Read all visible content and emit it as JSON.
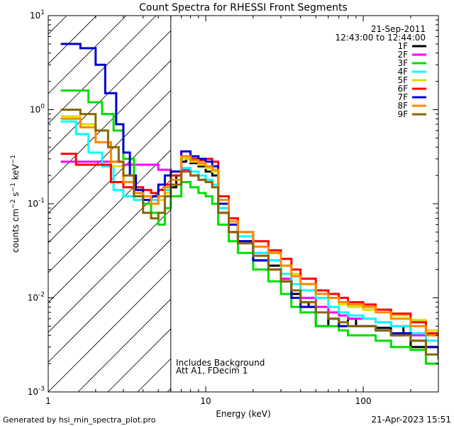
{
  "chart_data": {
    "type": "line",
    "title": "Count Spectra for RHESSI Front Segments",
    "xlabel": "Energy (keV)",
    "ylabel": "counts cm⁻² s⁻¹ keV⁻¹",
    "xscale": "log",
    "yscale": "log",
    "xlim": [
      1,
      300
    ],
    "ylim": [
      0.001,
      10
    ],
    "x_tick_labels": [
      {
        "value": 1,
        "label": "1"
      },
      {
        "value": 10,
        "label": "10"
      },
      {
        "value": 100,
        "label": "100"
      }
    ],
    "y_tick_labels": [
      {
        "value": 0.001,
        "base": "10",
        "exp": "-3"
      },
      {
        "value": 0.01,
        "base": "10",
        "exp": "-2"
      },
      {
        "value": 0.1,
        "base": "10",
        "exp": "-1"
      },
      {
        "value": 1,
        "base": "10",
        "exp": "0"
      },
      {
        "value": 10,
        "base": "10",
        "exp": "1"
      }
    ],
    "date": "21-Sep-2011",
    "time_range": "12:43:00 to 12:44:00",
    "shaded_region": {
      "x_min": 1,
      "x_max": 6,
      "pattern": "diagonal-hatch"
    },
    "annotations": [
      "Includes Background",
      "Att A1, FDecim 1"
    ],
    "series": [
      {
        "name": "1F",
        "color": "#000000",
        "points": [
          [
            6,
            0.15
          ],
          [
            6.5,
            0.2
          ],
          [
            7,
            0.28
          ],
          [
            7.5,
            0.3
          ],
          [
            8,
            0.27
          ],
          [
            9,
            0.25
          ],
          [
            10,
            0.22
          ],
          [
            11,
            0.2
          ],
          [
            12,
            0.09
          ],
          [
            14,
            0.05
          ],
          [
            16,
            0.04
          ],
          [
            20,
            0.025
          ],
          [
            25,
            0.022
          ],
          [
            30,
            0.015
          ],
          [
            35,
            0.011
          ],
          [
            40,
            0.009
          ],
          [
            45,
            0.008
          ],
          [
            50,
            0.005
          ],
          [
            60,
            0.006
          ],
          [
            70,
            0.005
          ],
          [
            80,
            0.006
          ],
          [
            90,
            0.005
          ],
          [
            100,
            0.005
          ],
          [
            120,
            0.0048
          ],
          [
            150,
            0.004
          ],
          [
            180,
            0.005
          ],
          [
            200,
            0.003
          ],
          [
            250,
            0.003
          ],
          [
            300,
            0.0027
          ]
        ]
      },
      {
        "name": "2F",
        "color": "#ff00ff",
        "points": [
          [
            1.2,
            0.28
          ],
          [
            2,
            0.28
          ],
          [
            3,
            0.26
          ],
          [
            4,
            0.26
          ],
          [
            5,
            0.23
          ],
          [
            6,
            0.22
          ],
          [
            7,
            0.23
          ],
          [
            8,
            0.2
          ],
          [
            9,
            0.18
          ],
          [
            10,
            0.17
          ],
          [
            11,
            0.16
          ],
          [
            12,
            0.08
          ],
          [
            14,
            0.05
          ],
          [
            16,
            0.04
          ],
          [
            20,
            0.03
          ],
          [
            25,
            0.025
          ],
          [
            30,
            0.016
          ],
          [
            35,
            0.012
          ],
          [
            40,
            0.01
          ],
          [
            50,
            0.008
          ],
          [
            60,
            0.007
          ],
          [
            70,
            0.0065
          ],
          [
            80,
            0.006
          ],
          [
            100,
            0.006
          ],
          [
            120,
            0.0055
          ],
          [
            150,
            0.005
          ],
          [
            200,
            0.004
          ],
          [
            250,
            0.0035
          ],
          [
            300,
            0.003
          ]
        ]
      },
      {
        "name": "3F",
        "color": "#00dd00",
        "points": [
          [
            1.2,
            1.6
          ],
          [
            1.6,
            1.6
          ],
          [
            1.8,
            1.2
          ],
          [
            2.2,
            0.9
          ],
          [
            2.6,
            0.6
          ],
          [
            3,
            0.3
          ],
          [
            3.5,
            0.14
          ],
          [
            4,
            0.1
          ],
          [
            4.5,
            0.08
          ],
          [
            5,
            0.06
          ],
          [
            5.5,
            0.09
          ],
          [
            6,
            0.12
          ],
          [
            7,
            0.17
          ],
          [
            8,
            0.15
          ],
          [
            9,
            0.13
          ],
          [
            10,
            0.12
          ],
          [
            11,
            0.1
          ],
          [
            12,
            0.06
          ],
          [
            14,
            0.04
          ],
          [
            16,
            0.03
          ],
          [
            20,
            0.02
          ],
          [
            25,
            0.015
          ],
          [
            30,
            0.011
          ],
          [
            35,
            0.008
          ],
          [
            40,
            0.007
          ],
          [
            50,
            0.005
          ],
          [
            60,
            0.005
          ],
          [
            70,
            0.0045
          ],
          [
            80,
            0.004
          ],
          [
            100,
            0.004
          ],
          [
            120,
            0.0035
          ],
          [
            150,
            0.003
          ],
          [
            200,
            0.0028
          ],
          [
            250,
            0.002
          ],
          [
            300,
            0.002
          ]
        ]
      },
      {
        "name": "4F",
        "color": "#00ffff",
        "points": [
          [
            1.2,
            0.75
          ],
          [
            1.5,
            0.55
          ],
          [
            1.8,
            0.35
          ],
          [
            2.2,
            0.25
          ],
          [
            2.6,
            0.14
          ],
          [
            3,
            0.12
          ],
          [
            3.5,
            0.11
          ],
          [
            4,
            0.11
          ],
          [
            4.5,
            0.11
          ],
          [
            5,
            0.12
          ],
          [
            5.5,
            0.14
          ],
          [
            6,
            0.16
          ],
          [
            7,
            0.24
          ],
          [
            8,
            0.22
          ],
          [
            9,
            0.2
          ],
          [
            10,
            0.18
          ],
          [
            11,
            0.16
          ],
          [
            12,
            0.09
          ],
          [
            14,
            0.06
          ],
          [
            16,
            0.045
          ],
          [
            20,
            0.03
          ],
          [
            25,
            0.025
          ],
          [
            30,
            0.018
          ],
          [
            35,
            0.014
          ],
          [
            40,
            0.012
          ],
          [
            50,
            0.01
          ],
          [
            60,
            0.008
          ],
          [
            70,
            0.007
          ],
          [
            80,
            0.0065
          ],
          [
            100,
            0.006
          ],
          [
            120,
            0.0055
          ],
          [
            150,
            0.005
          ],
          [
            200,
            0.0042
          ],
          [
            250,
            0.0035
          ],
          [
            300,
            0.003
          ]
        ]
      },
      {
        "name": "5F",
        "color": "#dddd00",
        "points": [
          [
            1.2,
            0.85
          ],
          [
            1.6,
            0.7
          ],
          [
            2,
            0.45
          ],
          [
            2.5,
            0.25
          ],
          [
            3,
            0.15
          ],
          [
            3.5,
            0.13
          ],
          [
            4,
            0.12
          ],
          [
            4.5,
            0.1
          ],
          [
            5,
            0.11
          ],
          [
            5.5,
            0.13
          ],
          [
            6,
            0.16
          ],
          [
            7,
            0.3
          ],
          [
            8,
            0.28
          ],
          [
            9,
            0.26
          ],
          [
            10,
            0.24
          ],
          [
            11,
            0.22
          ],
          [
            12,
            0.1
          ],
          [
            14,
            0.06
          ],
          [
            16,
            0.05
          ],
          [
            20,
            0.035
          ],
          [
            25,
            0.03
          ],
          [
            30,
            0.022
          ],
          [
            35,
            0.018
          ],
          [
            40,
            0.014
          ],
          [
            50,
            0.011
          ],
          [
            60,
            0.01
          ],
          [
            70,
            0.0085
          ],
          [
            80,
            0.008
          ],
          [
            100,
            0.0075
          ],
          [
            120,
            0.007
          ],
          [
            150,
            0.0065
          ],
          [
            200,
            0.0058
          ],
          [
            250,
            0.0045
          ],
          [
            300,
            0.0035
          ]
        ]
      },
      {
        "name": "6F",
        "color": "#ff0000",
        "points": [
          [
            1.2,
            0.34
          ],
          [
            1.5,
            0.26
          ],
          [
            2,
            0.26
          ],
          [
            2.5,
            0.17
          ],
          [
            3,
            0.15
          ],
          [
            3.5,
            0.15
          ],
          [
            4,
            0.14
          ],
          [
            4.5,
            0.13
          ],
          [
            5,
            0.14
          ],
          [
            5.5,
            0.16
          ],
          [
            6,
            0.2
          ],
          [
            7,
            0.32
          ],
          [
            8,
            0.3
          ],
          [
            9,
            0.29
          ],
          [
            10,
            0.3
          ],
          [
            11,
            0.28
          ],
          [
            12,
            0.12
          ],
          [
            14,
            0.07
          ],
          [
            16,
            0.05
          ],
          [
            20,
            0.04
          ],
          [
            25,
            0.032
          ],
          [
            30,
            0.026
          ],
          [
            35,
            0.02
          ],
          [
            40,
            0.016
          ],
          [
            50,
            0.012
          ],
          [
            60,
            0.011
          ],
          [
            70,
            0.01
          ],
          [
            80,
            0.009
          ],
          [
            100,
            0.0085
          ],
          [
            120,
            0.0075
          ],
          [
            150,
            0.0068
          ],
          [
            200,
            0.0055
          ],
          [
            250,
            0.0042
          ],
          [
            300,
            0.0032
          ]
        ]
      },
      {
        "name": "7F",
        "color": "#0000cc",
        "points": [
          [
            1.2,
            5
          ],
          [
            1.4,
            5
          ],
          [
            1.6,
            4.5
          ],
          [
            2,
            3
          ],
          [
            2.3,
            1.5
          ],
          [
            2.7,
            0.7
          ],
          [
            3,
            0.35
          ],
          [
            3.3,
            0.2
          ],
          [
            3.6,
            0.14
          ],
          [
            4,
            0.11
          ],
          [
            4.5,
            0.12
          ],
          [
            5,
            0.16
          ],
          [
            5.5,
            0.2
          ],
          [
            6,
            0.22
          ],
          [
            7,
            0.36
          ],
          [
            8,
            0.32
          ],
          [
            9,
            0.3
          ],
          [
            10,
            0.28
          ],
          [
            11,
            0.25
          ],
          [
            12,
            0.1
          ],
          [
            14,
            0.06
          ],
          [
            16,
            0.04
          ],
          [
            20,
            0.025
          ],
          [
            25,
            0.02
          ],
          [
            30,
            0.015
          ],
          [
            35,
            0.01
          ],
          [
            40,
            0.008
          ],
          [
            50,
            0.007
          ],
          [
            60,
            0.006
          ],
          [
            70,
            0.005
          ],
          [
            80,
            0.005
          ],
          [
            100,
            0.005
          ],
          [
            120,
            0.0045
          ],
          [
            150,
            0.0042
          ],
          [
            200,
            0.0035
          ],
          [
            250,
            0.003
          ],
          [
            300,
            0.0025
          ]
        ]
      },
      {
        "name": "8F",
        "color": "#ff8800",
        "points": [
          [
            1.2,
            0.8
          ],
          [
            1.6,
            0.65
          ],
          [
            2,
            0.45
          ],
          [
            2.5,
            0.28
          ],
          [
            3,
            0.17
          ],
          [
            3.5,
            0.13
          ],
          [
            4,
            0.12
          ],
          [
            4.5,
            0.1
          ],
          [
            5,
            0.12
          ],
          [
            5.5,
            0.15
          ],
          [
            6,
            0.18
          ],
          [
            7,
            0.32
          ],
          [
            8,
            0.29
          ],
          [
            9,
            0.27
          ],
          [
            10,
            0.25
          ],
          [
            11,
            0.23
          ],
          [
            12,
            0.11
          ],
          [
            14,
            0.065
          ],
          [
            16,
            0.05
          ],
          [
            20,
            0.035
          ],
          [
            25,
            0.03
          ],
          [
            30,
            0.022
          ],
          [
            35,
            0.017
          ],
          [
            40,
            0.014
          ],
          [
            50,
            0.011
          ],
          [
            60,
            0.01
          ],
          [
            70,
            0.009
          ],
          [
            80,
            0.0085
          ],
          [
            100,
            0.008
          ],
          [
            120,
            0.007
          ],
          [
            150,
            0.006
          ],
          [
            200,
            0.005
          ],
          [
            250,
            0.004
          ],
          [
            300,
            0.0032
          ]
        ]
      },
      {
        "name": "9F",
        "color": "#886600",
        "points": [
          [
            1.2,
            1
          ],
          [
            1.6,
            0.9
          ],
          [
            2,
            0.6
          ],
          [
            2.4,
            0.4
          ],
          [
            2.8,
            0.28
          ],
          [
            3,
            0.2
          ],
          [
            3.5,
            0.12
          ],
          [
            4,
            0.08
          ],
          [
            4.5,
            0.07
          ],
          [
            5,
            0.08
          ],
          [
            5.5,
            0.12
          ],
          [
            6,
            0.16
          ],
          [
            7,
            0.22
          ],
          [
            8,
            0.2
          ],
          [
            9,
            0.18
          ],
          [
            10,
            0.17
          ],
          [
            11,
            0.15
          ],
          [
            12,
            0.08
          ],
          [
            14,
            0.05
          ],
          [
            16,
            0.038
          ],
          [
            20,
            0.028
          ],
          [
            25,
            0.02
          ],
          [
            30,
            0.015
          ],
          [
            35,
            0.012
          ],
          [
            40,
            0.009
          ],
          [
            50,
            0.007
          ],
          [
            60,
            0.006
          ],
          [
            70,
            0.0055
          ],
          [
            80,
            0.005
          ],
          [
            100,
            0.005
          ],
          [
            120,
            0.0045
          ],
          [
            150,
            0.004
          ],
          [
            200,
            0.0035
          ],
          [
            250,
            0.0025
          ],
          [
            300,
            0.0022
          ]
        ]
      }
    ]
  },
  "footer": {
    "generated_by": "Generated by hsi_min_spectra_plot.pro",
    "timestamp": "21-Apr-2023 15:51"
  }
}
